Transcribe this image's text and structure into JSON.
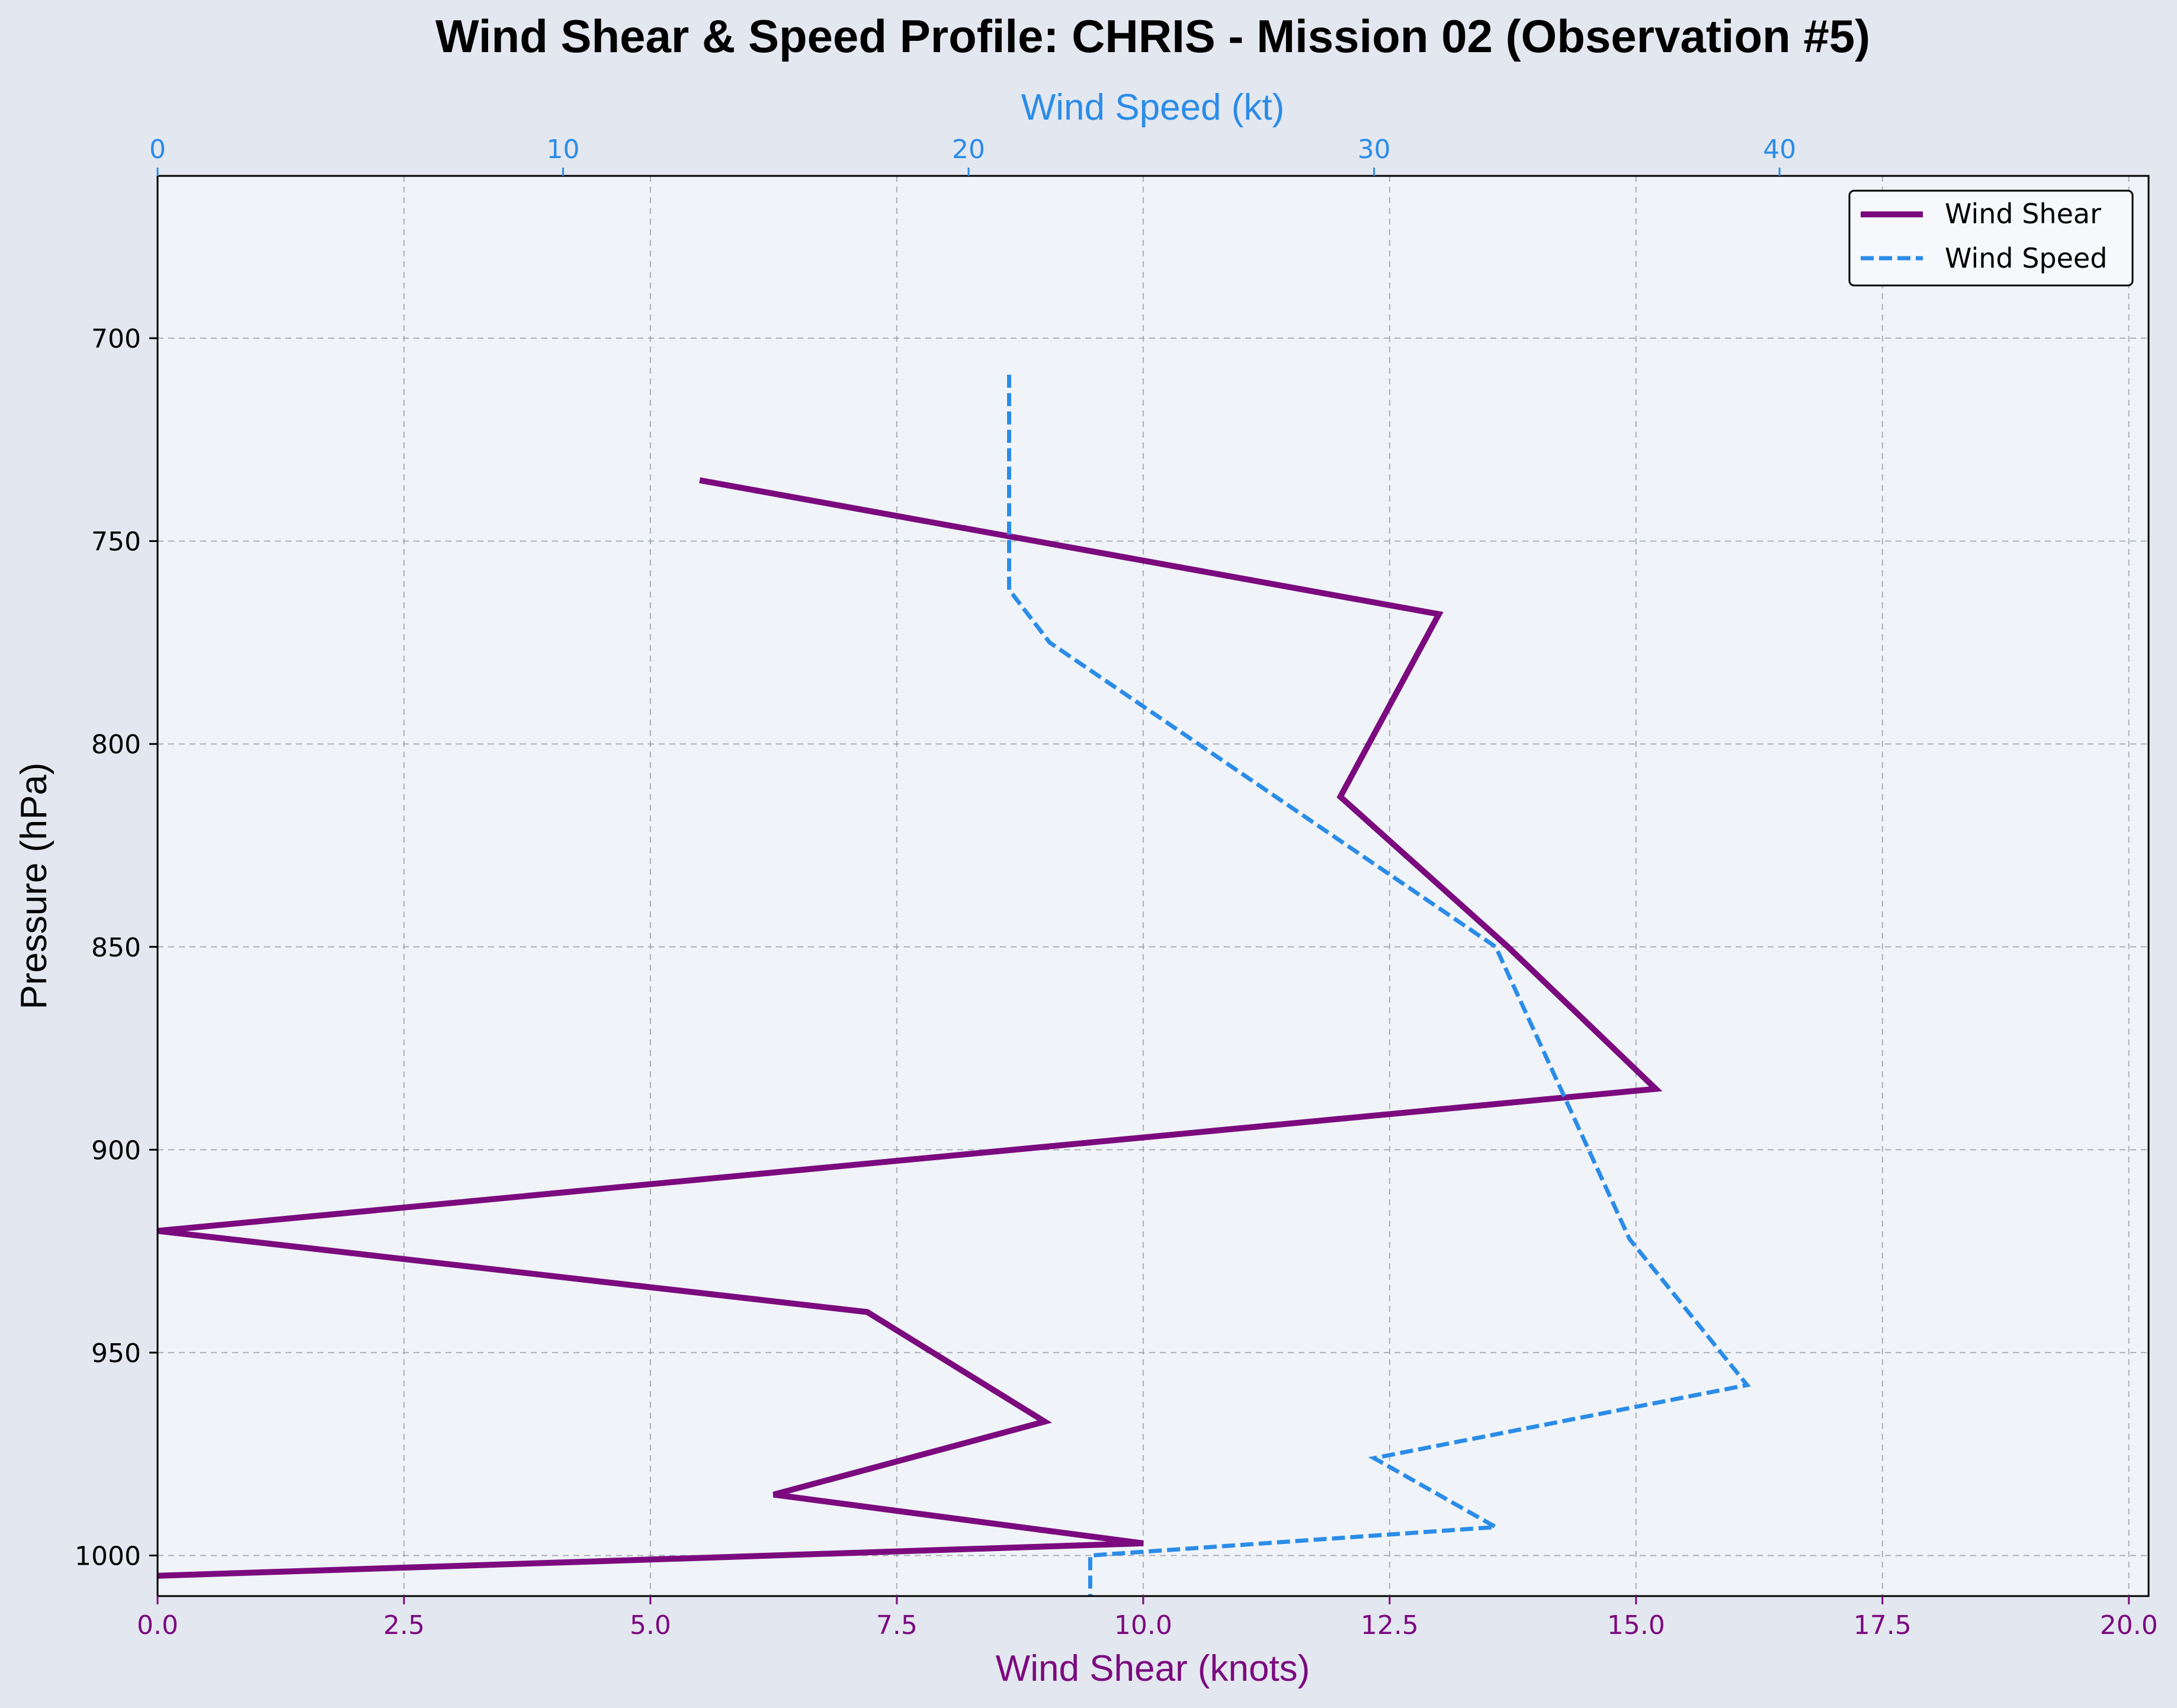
{
  "chart_data": {
    "type": "line",
    "title": "Wind Shear & Speed Profile: CHRIS - Mission 02 (Observation #5)",
    "xlabel_bottom": "Wind Shear (knots)",
    "xlabel_top": "Wind Speed (kt)",
    "ylabel": "Pressure (hPa)",
    "xlim_bottom": [
      0,
      20.2
    ],
    "xlim_top": [
      0,
      49.1
    ],
    "ylim": [
      1010,
      660
    ],
    "y_inverted": true,
    "grid": true,
    "legend_position": "top-right",
    "bottom_ticks": [
      "0.0",
      "2.5",
      "5.0",
      "7.5",
      "10.0",
      "12.5",
      "15.0",
      "17.5",
      "20.0"
    ],
    "top_ticks": [
      "0",
      "10",
      "20",
      "30",
      "40"
    ],
    "y_ticks": [
      "700",
      "750",
      "800",
      "850",
      "900",
      "950",
      "1000"
    ],
    "series": [
      {
        "name": "Wind Shear",
        "axis": "bottom",
        "color": "#7b0a7f",
        "style": "solid",
        "x": [
          5.5,
          13.0,
          12.0,
          13.7,
          15.2,
          0.0,
          7.2,
          9.0,
          6.25,
          10.0,
          0.0
        ],
        "y": [
          735,
          768,
          813,
          850,
          885,
          920,
          940,
          967,
          985,
          997,
          1005
        ]
      },
      {
        "name": "Wind Speed",
        "axis": "top",
        "color": "#2b8ce8",
        "style": "dashed",
        "x": [
          21.0,
          21.0,
          21.0,
          22.0,
          33.0,
          36.3,
          39.2,
          30.0,
          33.0,
          23.0,
          23.0,
          23.0
        ],
        "y": [
          709,
          750,
          762,
          775,
          850,
          922,
          958,
          976,
          993,
          1000,
          1004,
          1010
        ]
      }
    ]
  }
}
